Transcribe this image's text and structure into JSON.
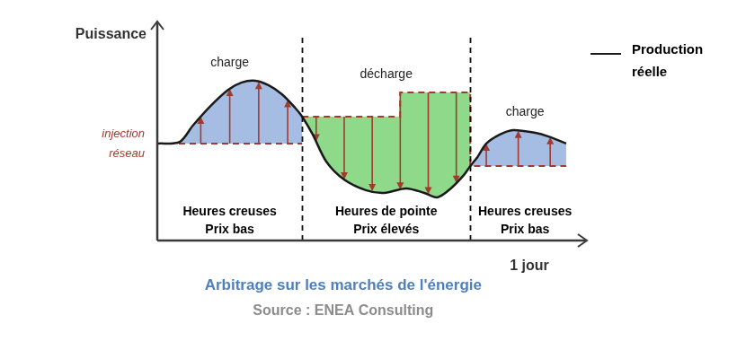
{
  "chart_data": {
    "type": "line",
    "title": "Arbitrage sur les marchés de l'énergie",
    "source": "Source : ENEA Consulting",
    "y_label": "Puissance",
    "x_label": "1 jour",
    "xlim": [
      0,
      100
    ],
    "ylim": [
      0,
      100
    ],
    "tick_labels": false,
    "grid": false,
    "legend": "top right",
    "series": [
      {
        "name": "Production réelle",
        "color": "#1a1a1a",
        "x": [
          0,
          5.3,
          8.4,
          12.6,
          16.8,
          20,
          23.2,
          26.3,
          29.5,
          32.6,
          34.3,
          36.8,
          40,
          44.2,
          49.5,
          53.7,
          58.9,
          63.2,
          66.3,
          69.5,
          72.6,
          74.1,
          75.8,
          77.9,
          81.1,
          84.2,
          89.5,
          92.6,
          96.8
        ],
        "values": [
          45.4,
          46.2,
          53.8,
          63,
          70.6,
          74,
          74.8,
          72.7,
          68.5,
          62.2,
          58,
          49.6,
          37,
          28.6,
          23.5,
          22.3,
          24.4,
          22.3,
          20.2,
          24.4,
          30.7,
          34.9,
          39.1,
          45.4,
          49.6,
          51.7,
          50.4,
          48.7,
          45.4
        ]
      },
      {
        "name": "injection réseau",
        "color": "#a33a2e",
        "line_style": "dashed",
        "x": [
          0,
          34.3,
          34.3,
          34.3,
          57.5,
          57.5,
          74.1,
          74.1,
          96.8
        ],
        "values": [
          45.4,
          45.4,
          null,
          58,
          58,
          69.3,
          69.3,
          34.9,
          34.9
        ]
      }
    ],
    "phases": [
      {
        "label": "charge",
        "period": "Heures creuses",
        "price": "Prix bas",
        "start": 0,
        "end": 34.3,
        "color": "#a6bde3"
      },
      {
        "label": "décharge",
        "period": "Heures de pointe",
        "price": "Prix élevés",
        "start": 34.3,
        "end": 74.1,
        "color": "#8ed98a"
      },
      {
        "label": "charge",
        "period": "Heures creuses",
        "price": "Prix bas",
        "start": 74.1,
        "end": 100,
        "color": "#a6bde3"
      }
    ]
  }
}
